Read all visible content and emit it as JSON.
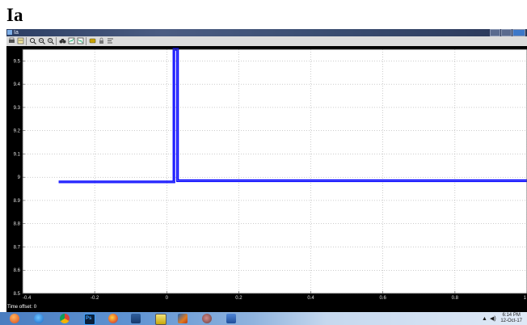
{
  "page": {
    "heading": "Ia"
  },
  "window": {
    "title": "Ia"
  },
  "toolbar": {
    "icons": [
      "print-icon",
      "parameters-icon",
      "zoom-in-icon",
      "zoom-x-icon",
      "zoom-y-icon",
      "autoscale-icon",
      "save-axes-icon",
      "restore-axes-icon",
      "floating-scope-icon",
      "lock-icon",
      "signal-selection-icon"
    ]
  },
  "scope": {
    "time_offset_label": "Time offset:",
    "time_offset_value": "0"
  },
  "chart_data": {
    "type": "line",
    "xlim": [
      -0.4,
      1.0
    ],
    "ylim": [
      8.5,
      9.55
    ],
    "x_ticks": [
      "-0.4",
      "-0.2",
      "0",
      "0.2",
      "0.4",
      "0.6",
      "0.8",
      "1"
    ],
    "y_ticks": [
      "8.5",
      "8.6",
      "8.7",
      "8.8",
      "8.9",
      "9",
      "9.1",
      "9.2",
      "9.3",
      "9.4",
      "9.5"
    ],
    "grid": true,
    "background": "#ffffff",
    "line_color": "#0000ff",
    "series": [
      {
        "x": [
          -0.3,
          -0.2,
          -0.1,
          0.0,
          0.02,
          0.02,
          0.025,
          0.025,
          0.03,
          0.03,
          0.1,
          0.2,
          0.4,
          0.6,
          0.8,
          1.0
        ],
        "y": [
          8.98,
          8.98,
          8.98,
          8.98,
          8.98,
          9.55,
          9.55,
          9.55,
          9.55,
          8.985,
          8.985,
          8.985,
          8.985,
          8.985,
          8.985,
          8.985
        ]
      }
    ]
  },
  "taskbar": {
    "apps": [
      "start-orb-icon",
      "edge-icon",
      "chrome-icon",
      "photoshop-icon",
      "firefox-icon",
      "file-explorer-icon",
      "sticky-notes-icon",
      "matlab-icon",
      "media-player-icon",
      "word-icon"
    ],
    "ps_label": "Ps",
    "time": "6:14 PM",
    "date": "12-Oct-17",
    "tray_arrow": "▲",
    "tray_volume": "◀)"
  }
}
